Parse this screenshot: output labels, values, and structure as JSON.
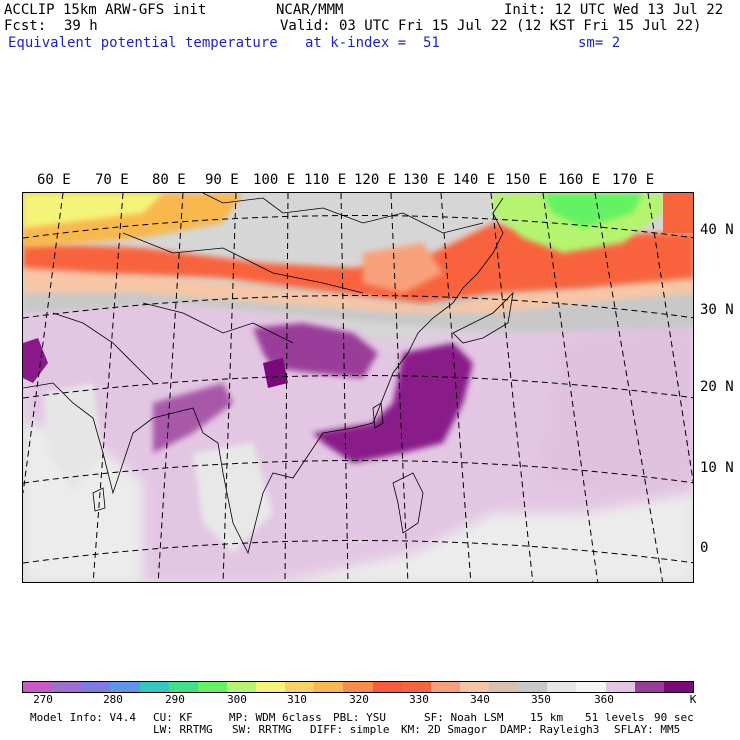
{
  "header": {
    "line1_left": "ACCLIP 15km ARW-GFS init",
    "line1_center": "NCAR/MMM",
    "line1_right": "Init: 12 UTC Wed 13 Jul 22",
    "fcst_label": "Fcst:",
    "fcst_value": "39 h",
    "valid": "Valid: 03 UTC Fri 15 Jul 22 (12 KST Fri 15 Jul 22)",
    "field": "Equivalent potential temperature",
    "level": "at k-index =  51",
    "smoothing": "sm= 2"
  },
  "map": {
    "lon_labels": [
      "60 E",
      "70 E",
      "80 E",
      "90 E",
      "100 E",
      "110 E",
      "120 E",
      "130 E",
      "140 E",
      "150 E",
      "160 E",
      "170 E"
    ],
    "lat_labels": [
      "40 N",
      "30 N",
      "20 N",
      "10 N",
      "0"
    ]
  },
  "colorbar": {
    "colors": [
      "#c85ac8",
      "#a06ed2",
      "#7f7ae6",
      "#5f96ec",
      "#30c8c0",
      "#3ee08c",
      "#64f264",
      "#b4f46e",
      "#f4f47a",
      "#fad264",
      "#f8b84e",
      "#f88c4a",
      "#f85a3c",
      "#f8643c",
      "#f8a07c",
      "#f4c4a4",
      "#d8c0b0",
      "#c8c8c8",
      "#e6e6e6",
      "#f4f4f4",
      "#e4c4e4",
      "#9a3c9a",
      "#7a0a7a"
    ],
    "labels": [
      "270",
      "280",
      "290",
      "300",
      "310",
      "320",
      "330",
      "340",
      "350",
      "360"
    ],
    "unit": "K"
  },
  "footer": {
    "line1": [
      "Model Info: V4.4",
      "CU: KF",
      "MP: WDM 6class",
      "PBL: YSU",
      "SF: Noah LSM",
      "15 km",
      "51 levels",
      "90 sec"
    ],
    "line2": [
      "LW: RRTMG",
      "SW: RRTMG",
      "DIFF: simple",
      "KM: 2D Smagor",
      "DAMP: Rayleigh3",
      "SFLAY: MM5"
    ]
  }
}
